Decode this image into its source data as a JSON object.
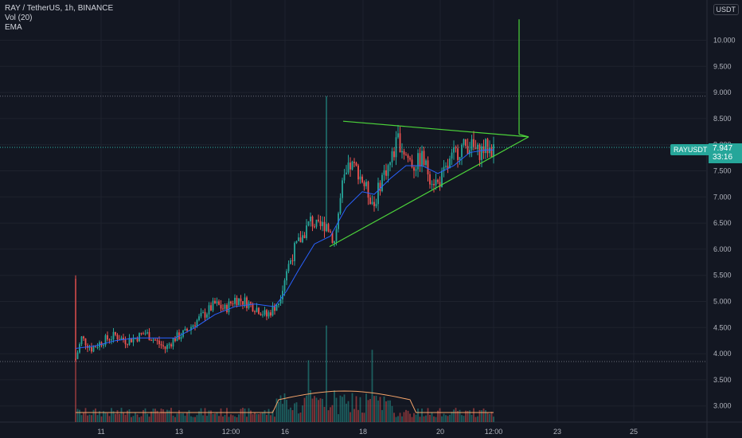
{
  "legend": {
    "symbol": "RAY / TetherUS, 1h, BINANCE",
    "volume": "Vol (20)",
    "ema": "EMA"
  },
  "currency": "USDT",
  "price_tag": {
    "ticker": "RAYUSDT",
    "price": "7.947",
    "countdown": "33:16"
  },
  "colors": {
    "background": "#131722",
    "up": "#26a69a",
    "down": "#ef5350",
    "ema": "#2962ff",
    "volume_ma": "#f5a46a",
    "pattern": "#4cd33a"
  },
  "chart_data": {
    "type": "candlestick",
    "y_axis": {
      "ticks": [
        "10.000",
        "9.500",
        "9.000",
        "8.500",
        "8.000",
        "7.500",
        "7.000",
        "6.500",
        "6.000",
        "5.500",
        "5.000",
        "4.500",
        "4.000",
        "3.500",
        "3.000"
      ],
      "range": [
        2.8,
        10.6
      ]
    },
    "x_axis": {
      "ticks": [
        "11",
        "13",
        "12:00",
        "16",
        "18",
        "20",
        "12:00",
        "23",
        "25"
      ]
    },
    "ohlc_approx_path": [
      [
        0,
        3.9
      ],
      [
        3,
        4.3
      ],
      [
        8,
        4.1
      ],
      [
        14,
        4.25
      ],
      [
        20,
        4.35
      ],
      [
        25,
        4.25
      ],
      [
        30,
        4.3
      ],
      [
        35,
        4.4
      ],
      [
        40,
        4.25
      ],
      [
        45,
        4.1
      ],
      [
        50,
        4.3
      ],
      [
        55,
        4.4
      ],
      [
        60,
        4.6
      ],
      [
        66,
        4.8
      ],
      [
        70,
        4.95
      ],
      [
        75,
        4.85
      ],
      [
        80,
        5.05
      ],
      [
        85,
        5.0
      ],
      [
        92,
        4.85
      ],
      [
        96,
        4.72
      ],
      [
        102,
        5.0
      ],
      [
        106,
        5.6
      ],
      [
        110,
        6.0
      ],
      [
        114,
        6.25
      ],
      [
        118,
        6.55
      ],
      [
        122,
        6.4
      ],
      [
        126,
        6.5
      ],
      [
        130,
        6.15
      ],
      [
        134,
        7.2
      ],
      [
        138,
        7.6
      ],
      [
        142,
        7.5
      ],
      [
        146,
        7.15
      ],
      [
        150,
        6.85
      ],
      [
        154,
        7.4
      ],
      [
        158,
        7.65
      ],
      [
        162,
        8.1
      ],
      [
        166,
        7.8
      ],
      [
        170,
        7.6
      ],
      [
        174,
        7.75
      ],
      [
        178,
        7.4
      ],
      [
        182,
        7.25
      ],
      [
        186,
        7.5
      ],
      [
        190,
        7.8
      ],
      [
        194,
        7.95
      ],
      [
        198,
        8.0
      ],
      [
        202,
        7.85
      ],
      [
        206,
        7.95
      ],
      [
        210,
        7.9
      ]
    ],
    "ema_approx": [
      [
        0,
        4.1
      ],
      [
        10,
        4.15
      ],
      [
        20,
        4.25
      ],
      [
        30,
        4.3
      ],
      [
        40,
        4.3
      ],
      [
        50,
        4.3
      ],
      [
        60,
        4.5
      ],
      [
        70,
        4.75
      ],
      [
        80,
        4.9
      ],
      [
        90,
        4.95
      ],
      [
        100,
        4.9
      ],
      [
        106,
        5.2
      ],
      [
        112,
        5.6
      ],
      [
        120,
        6.1
      ],
      [
        128,
        6.25
      ],
      [
        136,
        6.8
      ],
      [
        144,
        7.1
      ],
      [
        150,
        7.05
      ],
      [
        158,
        7.35
      ],
      [
        166,
        7.6
      ],
      [
        174,
        7.6
      ],
      [
        182,
        7.45
      ],
      [
        190,
        7.6
      ],
      [
        198,
        7.85
      ],
      [
        206,
        7.9
      ],
      [
        210,
        7.9
      ]
    ],
    "pattern": {
      "name": "symmetrical triangle",
      "upper_line": [
        [
          8.45,
          "start"
        ],
        [
          8.15,
          "apex"
        ]
      ],
      "lower_line": [
        [
          6.05,
          "start"
        ],
        [
          8.15,
          "apex"
        ]
      ],
      "target_line": [
        8.2,
        10.4
      ]
    },
    "current_price": 7.947,
    "dotted_levels": [
      8.93,
      7.95,
      3.85
    ],
    "grid": true
  }
}
